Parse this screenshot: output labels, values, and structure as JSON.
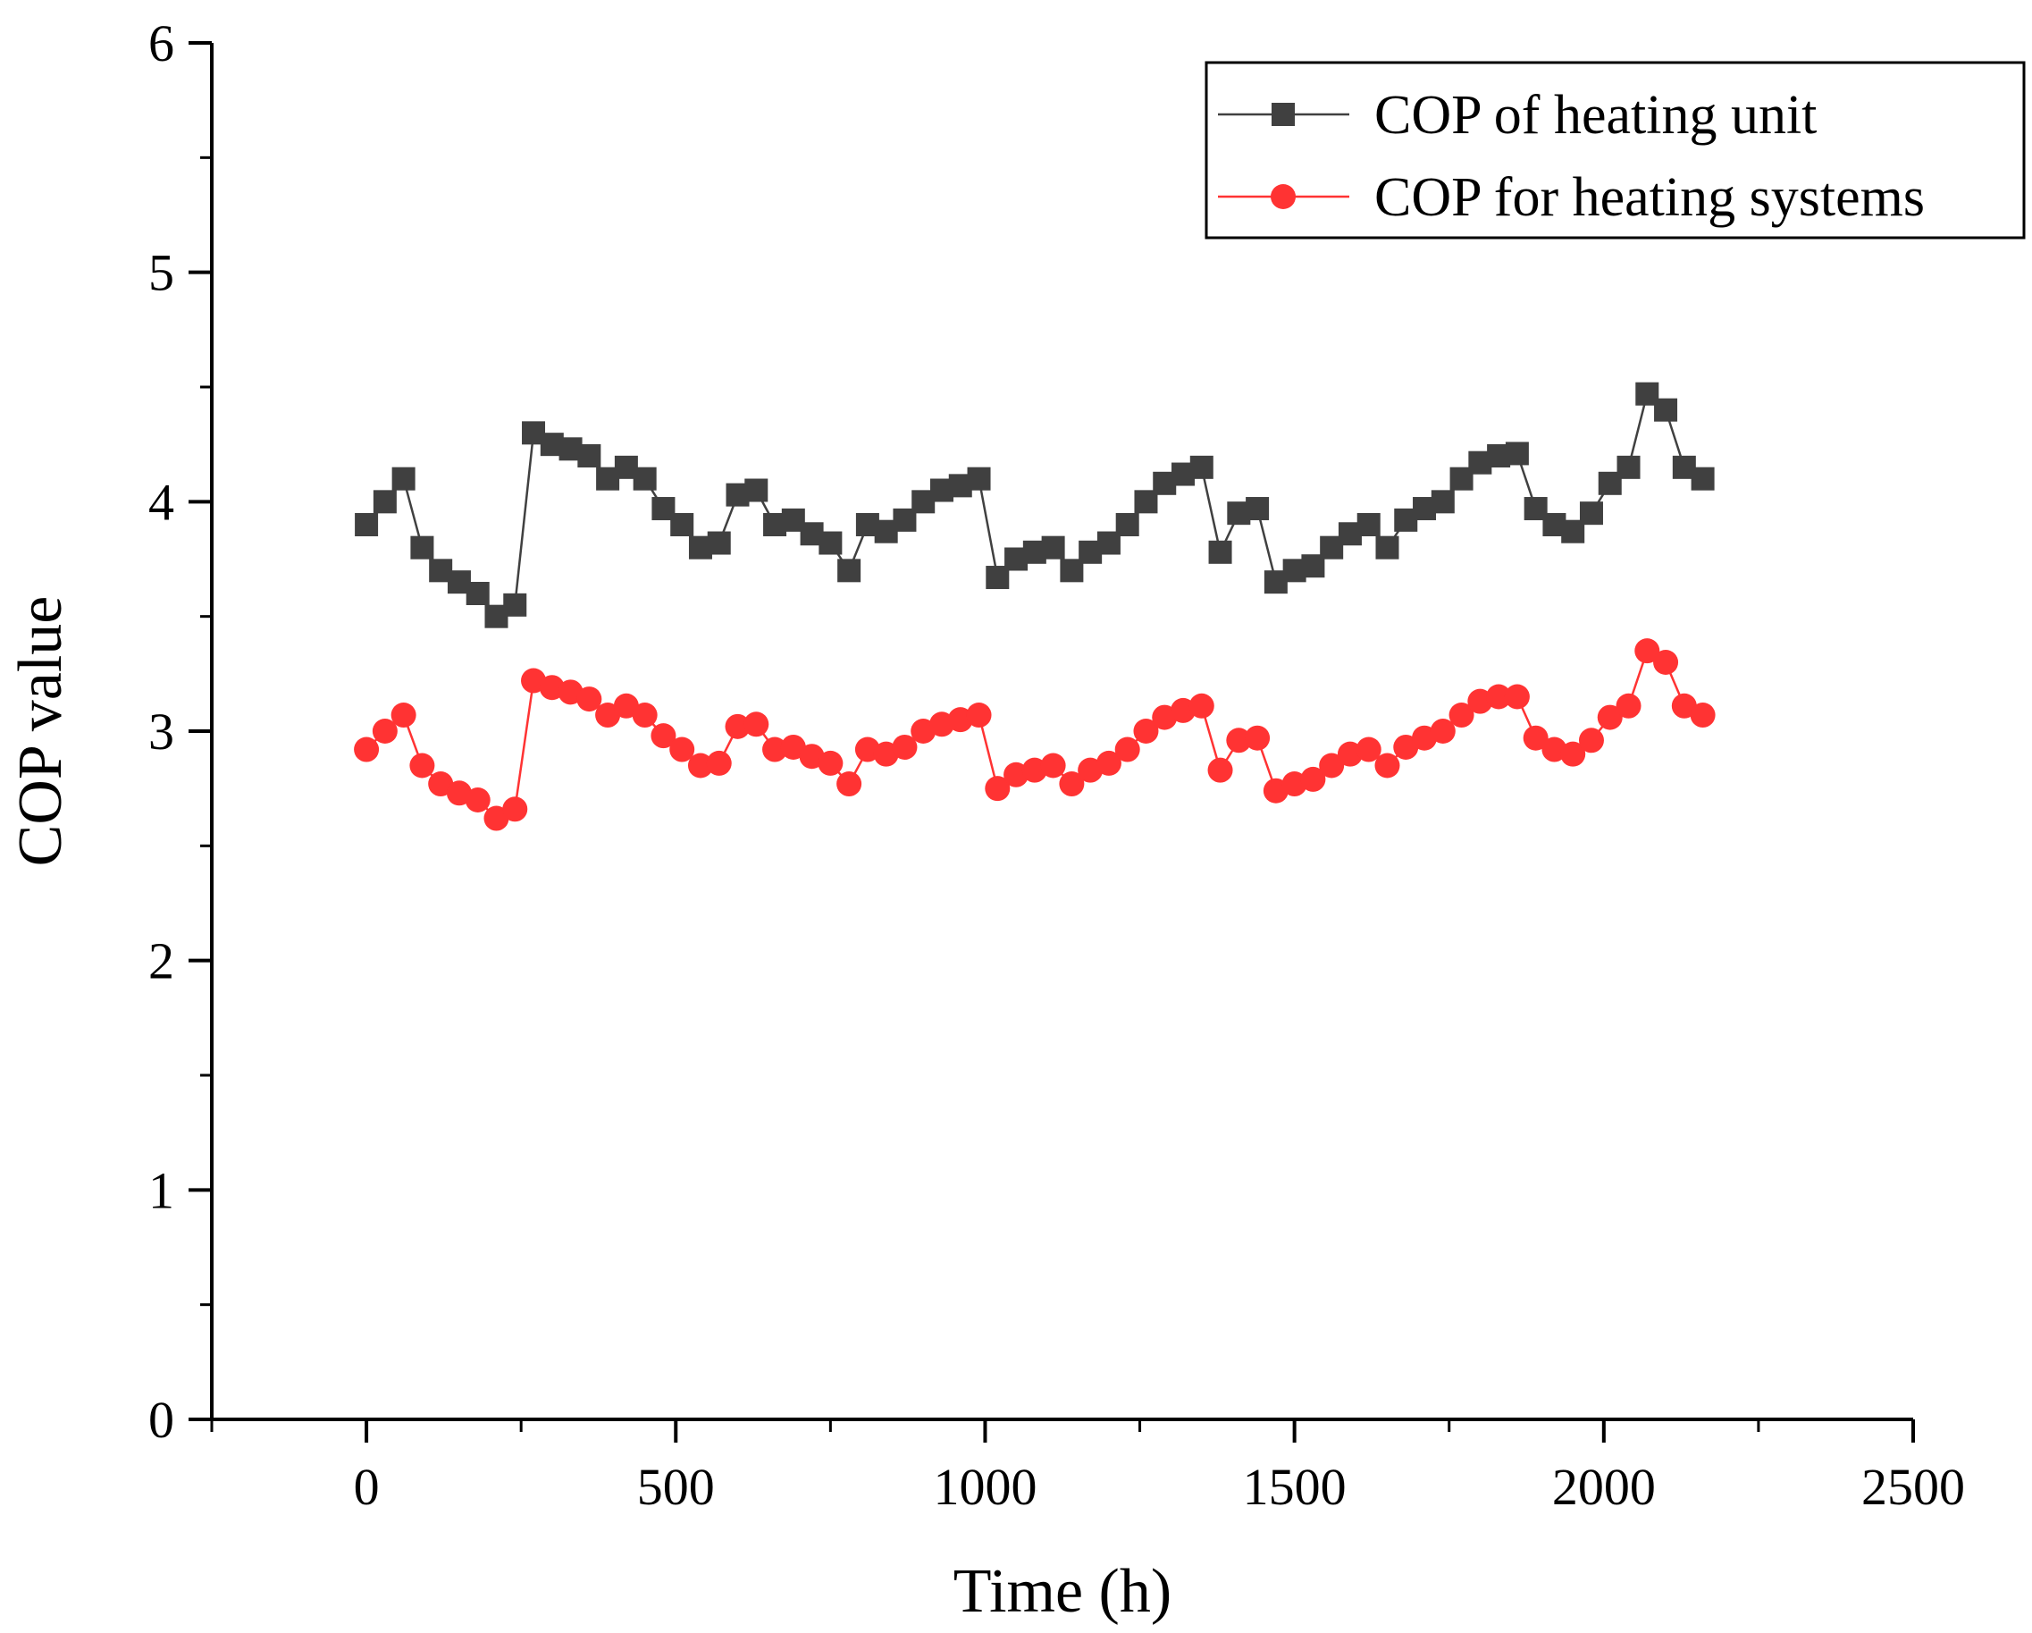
{
  "chart_data": {
    "type": "line",
    "title": "",
    "xlabel": "Time (h)",
    "ylabel": "COP value",
    "xlim": [
      -250,
      2500
    ],
    "ylim": [
      0,
      6
    ],
    "xticks": [
      0,
      500,
      1000,
      1500,
      2000,
      2500
    ],
    "yticks": [
      0,
      1,
      2,
      3,
      4,
      5,
      6
    ],
    "grid": false,
    "legend_position": "top-right",
    "x": [
      0,
      30,
      60,
      90,
      120,
      150,
      180,
      210,
      240,
      270,
      300,
      330,
      360,
      390,
      420,
      450,
      480,
      510,
      540,
      570,
      600,
      630,
      660,
      690,
      720,
      750,
      780,
      810,
      840,
      870,
      900,
      930,
      960,
      990,
      1020,
      1050,
      1080,
      1110,
      1140,
      1170,
      1200,
      1230,
      1260,
      1290,
      1320,
      1350,
      1380,
      1410,
      1440,
      1470,
      1500,
      1530,
      1560,
      1590,
      1620,
      1650,
      1680,
      1710,
      1740,
      1770,
      1800,
      1830,
      1860,
      1890,
      1920,
      1950,
      1980,
      2010,
      2040,
      2070,
      2100,
      2130,
      2160
    ],
    "series": [
      {
        "name": "COP of heating unit",
        "color": "#404040",
        "marker": "square",
        "values": [
          3.9,
          4.0,
          4.1,
          3.8,
          3.7,
          3.65,
          3.6,
          3.5,
          3.55,
          4.3,
          4.25,
          4.23,
          4.2,
          4.1,
          4.15,
          4.1,
          3.97,
          3.9,
          3.8,
          3.82,
          4.03,
          4.05,
          3.9,
          3.92,
          3.86,
          3.82,
          3.7,
          3.9,
          3.87,
          3.92,
          4.0,
          4.05,
          4.07,
          4.1,
          3.67,
          3.75,
          3.78,
          3.8,
          3.7,
          3.78,
          3.82,
          3.9,
          4.0,
          4.08,
          4.12,
          4.15,
          3.78,
          3.95,
          3.97,
          3.65,
          3.7,
          3.72,
          3.8,
          3.86,
          3.9,
          3.8,
          3.92,
          3.97,
          4.0,
          4.1,
          4.17,
          4.2,
          4.21,
          3.97,
          3.9,
          3.87,
          3.95,
          4.08,
          4.15,
          4.47,
          4.4,
          4.15,
          4.1
        ]
      },
      {
        "name": "COP for heating systems",
        "color": "#ff3333",
        "marker": "circle",
        "values": [
          2.92,
          3.0,
          3.07,
          2.85,
          2.77,
          2.73,
          2.7,
          2.62,
          2.66,
          3.22,
          3.19,
          3.17,
          3.14,
          3.07,
          3.11,
          3.07,
          2.98,
          2.92,
          2.85,
          2.86,
          3.02,
          3.03,
          2.92,
          2.93,
          2.89,
          2.86,
          2.77,
          2.92,
          2.9,
          2.93,
          3.0,
          3.03,
          3.05,
          3.07,
          2.75,
          2.81,
          2.83,
          2.85,
          2.77,
          2.83,
          2.86,
          2.92,
          3.0,
          3.06,
          3.09,
          3.11,
          2.83,
          2.96,
          2.97,
          2.74,
          2.77,
          2.79,
          2.85,
          2.9,
          2.92,
          2.85,
          2.93,
          2.97,
          3.0,
          3.07,
          3.13,
          3.15,
          3.15,
          2.97,
          2.92,
          2.9,
          2.96,
          3.06,
          3.11,
          3.35,
          3.3,
          3.11,
          3.07
        ]
      }
    ]
  }
}
